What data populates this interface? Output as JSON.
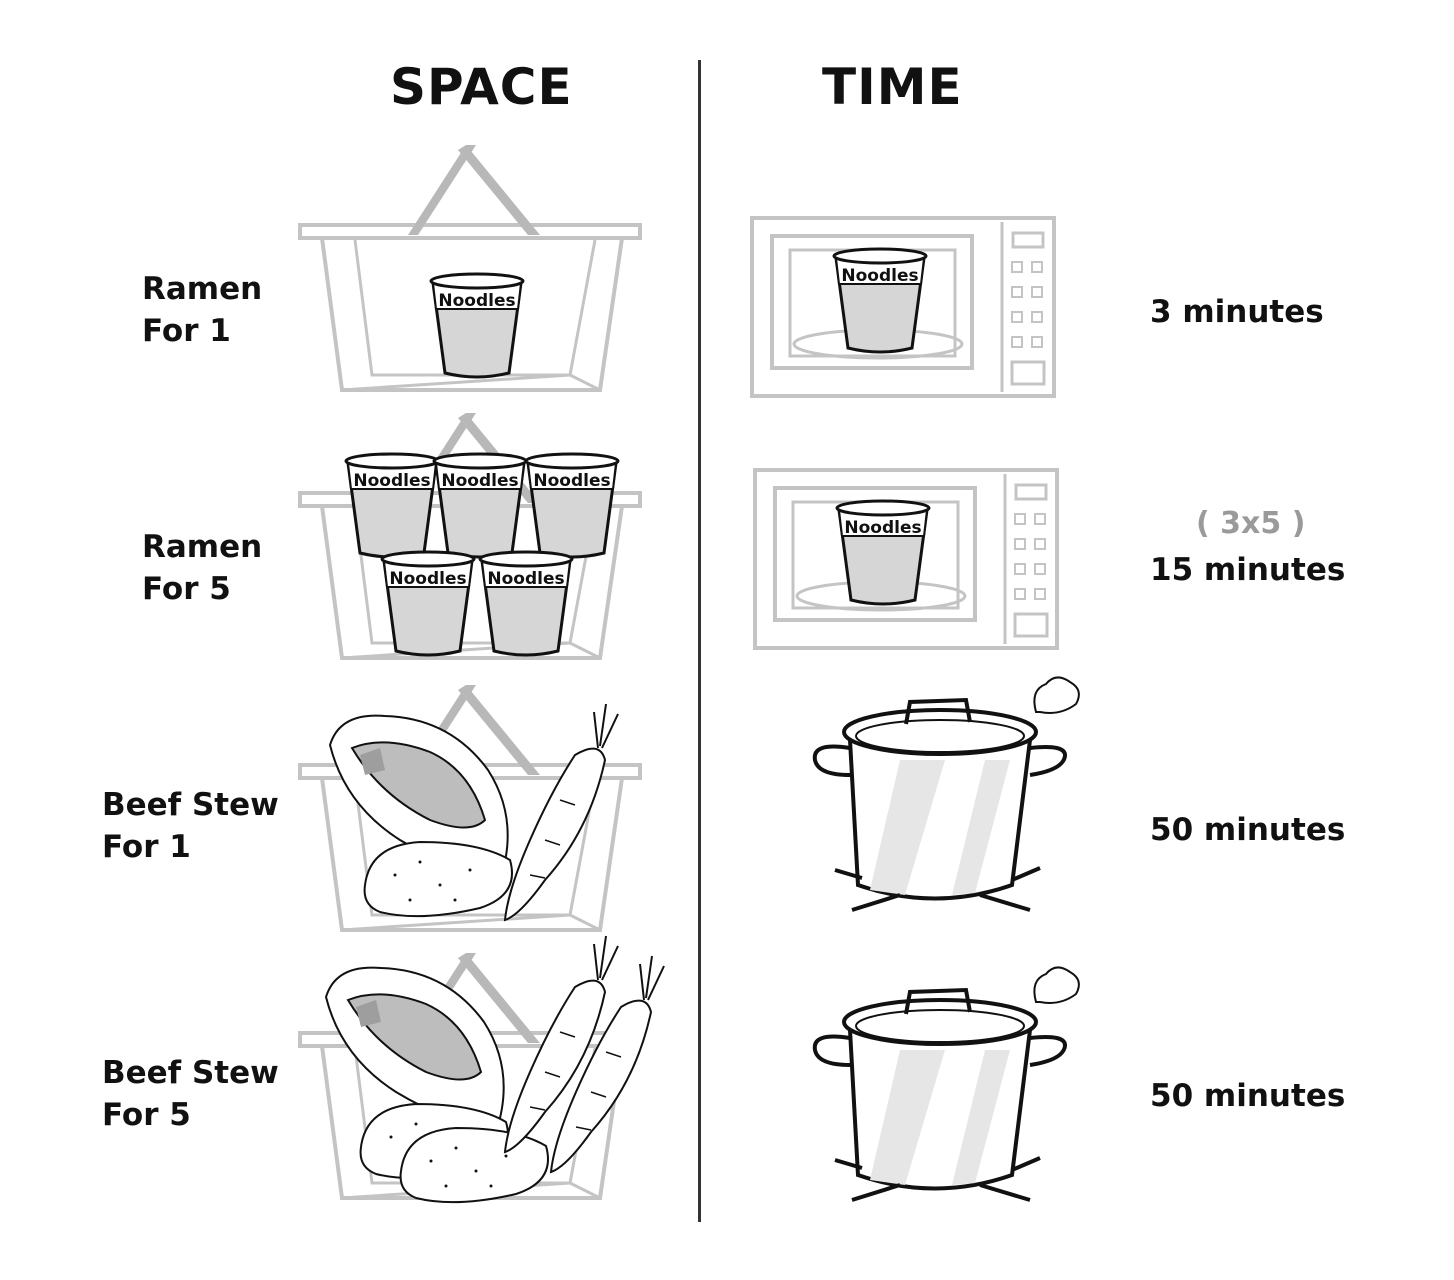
{
  "headings": {
    "space": "SPACE",
    "time": "TIME"
  },
  "cup_label": "Noodles",
  "rows": [
    {
      "line1": "Ramen",
      "line2": "For 1",
      "duration": "3 minutes",
      "calc": ""
    },
    {
      "line1": "Ramen",
      "line2": "For 5",
      "duration": "15 minutes",
      "calc": "( 3x5 )"
    },
    {
      "line1": "Beef Stew",
      "line2": "For 1",
      "duration": "50 minutes",
      "calc": ""
    },
    {
      "line1": "Beef Stew",
      "line2": "For 5",
      "duration": "50 minutes",
      "calc": ""
    }
  ],
  "colors": {
    "basket": "#c4c4c4",
    "ink": "#111111",
    "fill_gray": "#d6d6d6",
    "calc_gray": "#9a9a9a"
  }
}
